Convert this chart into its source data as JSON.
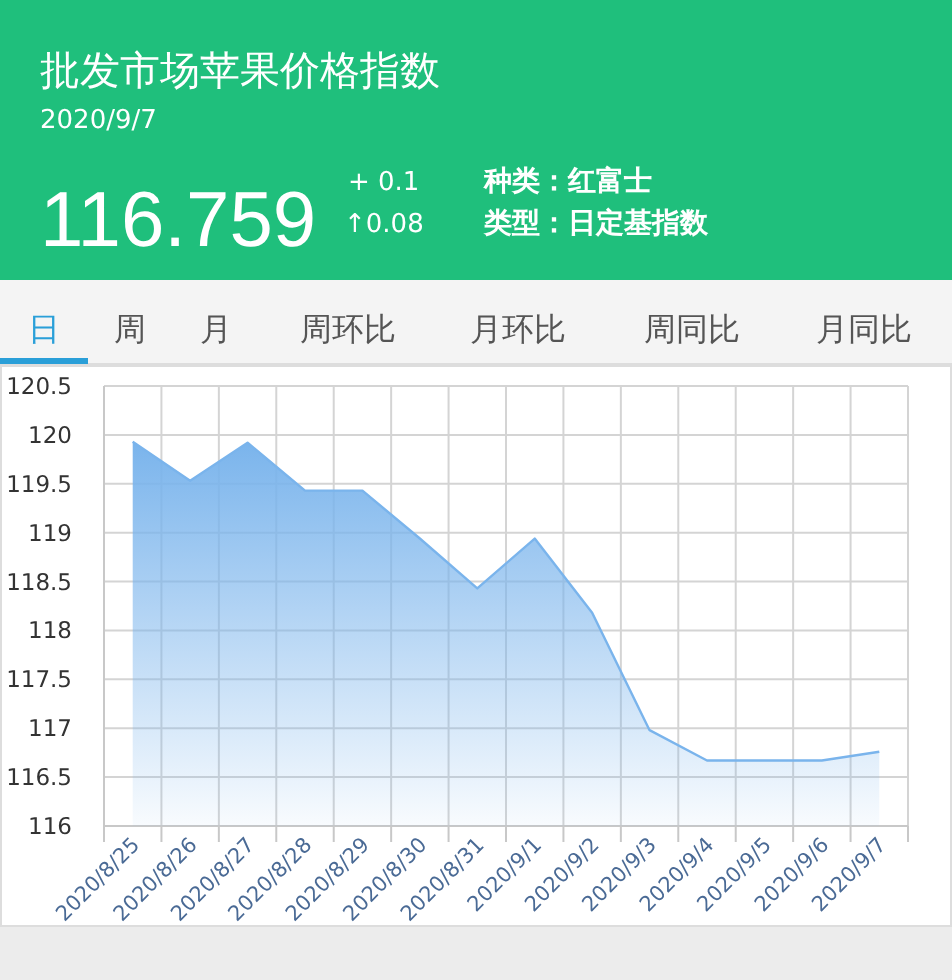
{
  "chart_data": [
    {
      "type": "other",
      "title": "批发市场苹果价格指数",
      "subtitle": "2020/9/7",
      "annotations": [
        "116.759",
        "+ 0.1",
        "↑0.08",
        "种类：红富士",
        "类型：日定基指数"
      ]
    },
    {
      "type": "other",
      "annotations": [
        "日",
        "周",
        "月",
        "周环比",
        "月环比",
        "周同比",
        "月同比"
      ]
    },
    {
      "type": "area",
      "color": "#7ab4ec",
      "categories": [
        "2020/8/25",
        "2020/8/26",
        "2020/8/27",
        "2020/8/28",
        "2020/8/29",
        "2020/8/30",
        "2020/8/31",
        "2020/9/1",
        "2020/9/2",
        "2020/9/3",
        "2020/9/4",
        "2020/9/5",
        "2020/9/6",
        "2020/9/7"
      ],
      "values": [
        119.93,
        119.53,
        119.92,
        119.43,
        119.43,
        118.94,
        118.43,
        118.94,
        118.18,
        116.98,
        116.67,
        116.67,
        116.67,
        116.76
      ],
      "ylim": [
        116,
        120.5
      ],
      "yticks": [
        116,
        116.5,
        117,
        117.5,
        118,
        118.5,
        119,
        119.5,
        120,
        120.5
      ],
      "grid": true
    }
  ]
}
